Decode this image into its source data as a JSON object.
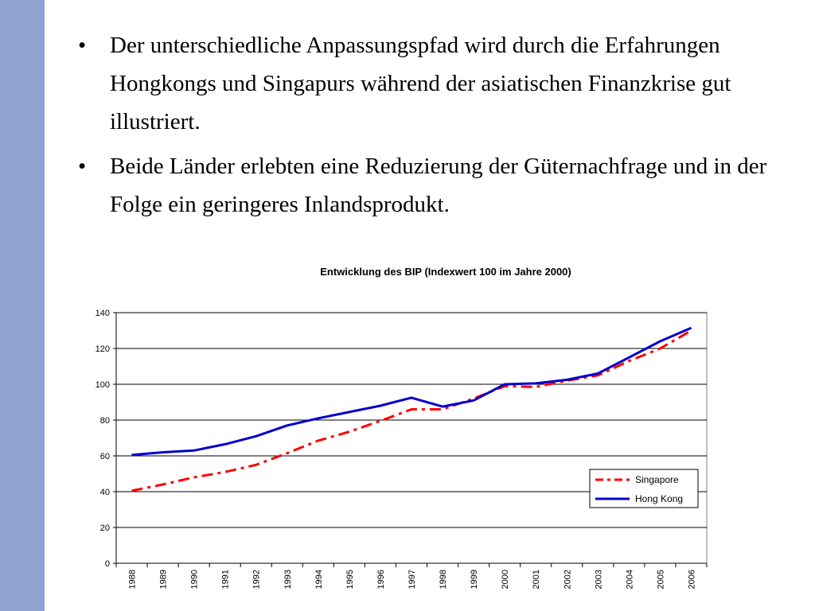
{
  "slide": {
    "bullet_symbol": "•",
    "bullets": [
      "Der unterschiedliche Anpassungspfad wird durch die Erfahrungen Hongkongs und Singapurs während der asiatischen Finanzkrise gut illustriert.",
      "Beide Länder erlebten eine Reduzierung der Güternachfrage und in der Folge ein geringeres Inlandsprodukt."
    ]
  },
  "chart_data": {
    "type": "line",
    "title": "Entwicklung des BIP (Indexwert 100 im Jahre 2000)",
    "xlabel": "",
    "ylabel": "",
    "categories": [
      "1988",
      "1989",
      "1990",
      "1991",
      "1992",
      "1993",
      "1994",
      "1995",
      "1996",
      "1997",
      "1998",
      "1999",
      "2000",
      "2001",
      "2002",
      "2003",
      "2004",
      "2005",
      "2006"
    ],
    "ylim": [
      0,
      140
    ],
    "yticks": [
      0,
      20,
      40,
      60,
      80,
      100,
      120,
      140
    ],
    "grid": true,
    "legend_position": "bottom-right",
    "series": [
      {
        "name": "Singapore",
        "color": "#ff0000",
        "style": "dashed",
        "values": [
          40.5,
          44,
          48,
          51,
          55,
          61.5,
          68.5,
          73.5,
          79.5,
          86,
          86,
          92,
          99,
          98.5,
          102,
          105,
          113,
          120,
          130
        ]
      },
      {
        "name": "Hong Kong",
        "color": "#0000cc",
        "style": "solid",
        "values": [
          60.5,
          62,
          63,
          66.5,
          71,
          77,
          81,
          84.5,
          88,
          92.5,
          87.5,
          91,
          100,
          100.5,
          102.5,
          106,
          115,
          124,
          131.5
        ]
      }
    ]
  }
}
